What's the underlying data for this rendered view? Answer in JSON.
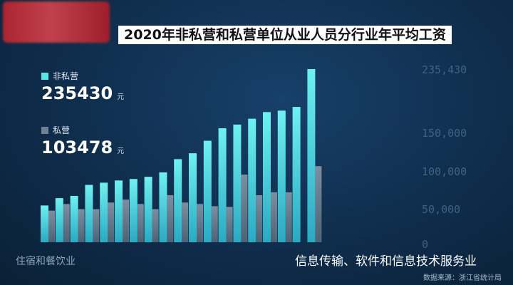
{
  "brand": {
    "logo_text": ""
  },
  "colors": {
    "background": "#0f2d4c",
    "non_private": "#58e3e6",
    "private": "#6f8193",
    "title_bg": "#ffffff"
  },
  "chart_data": {
    "type": "bar",
    "title": "2020年非私营和私营单位从业人员分行业年平均工资",
    "categories": [
      "住宿和餐饮业",
      "",
      "",
      "",
      "",
      "",
      "",
      "",
      "",
      "",
      "",
      "",
      "",
      "",
      "",
      "",
      "",
      "",
      "信息传输、软件和信息技术服务业"
    ],
    "series": [
      {
        "name": "非私营",
        "values": [
          50000,
          60000,
          63000,
          78000,
          81000,
          84000,
          86000,
          89000,
          95000,
          113000,
          121000,
          138000,
          155000,
          160000,
          168000,
          177000,
          179000,
          184000,
          235430
        ]
      },
      {
        "name": "私营",
        "values": [
          43000,
          52000,
          45000,
          45000,
          54000,
          58000,
          52000,
          45000,
          64000,
          54000,
          52000,
          49000,
          48000,
          92000,
          64000,
          68000,
          68000,
          0,
          103478
        ]
      }
    ],
    "legend": [
      {
        "name": "非私营",
        "value": "235430",
        "unit": "元"
      },
      {
        "name": "私营",
        "value": "103478",
        "unit": "元"
      }
    ],
    "yticks": [
      "235,430",
      "150,000",
      "100,000",
      "50,000",
      "0"
    ],
    "ylim": [
      0,
      235430
    ],
    "grid": false,
    "legend_position": "top-left",
    "first_category_label": "住宿和餐饮业",
    "last_category_label": "信息传输、软件和信息技术服务业",
    "source": "数据来源：浙江省统计局"
  }
}
